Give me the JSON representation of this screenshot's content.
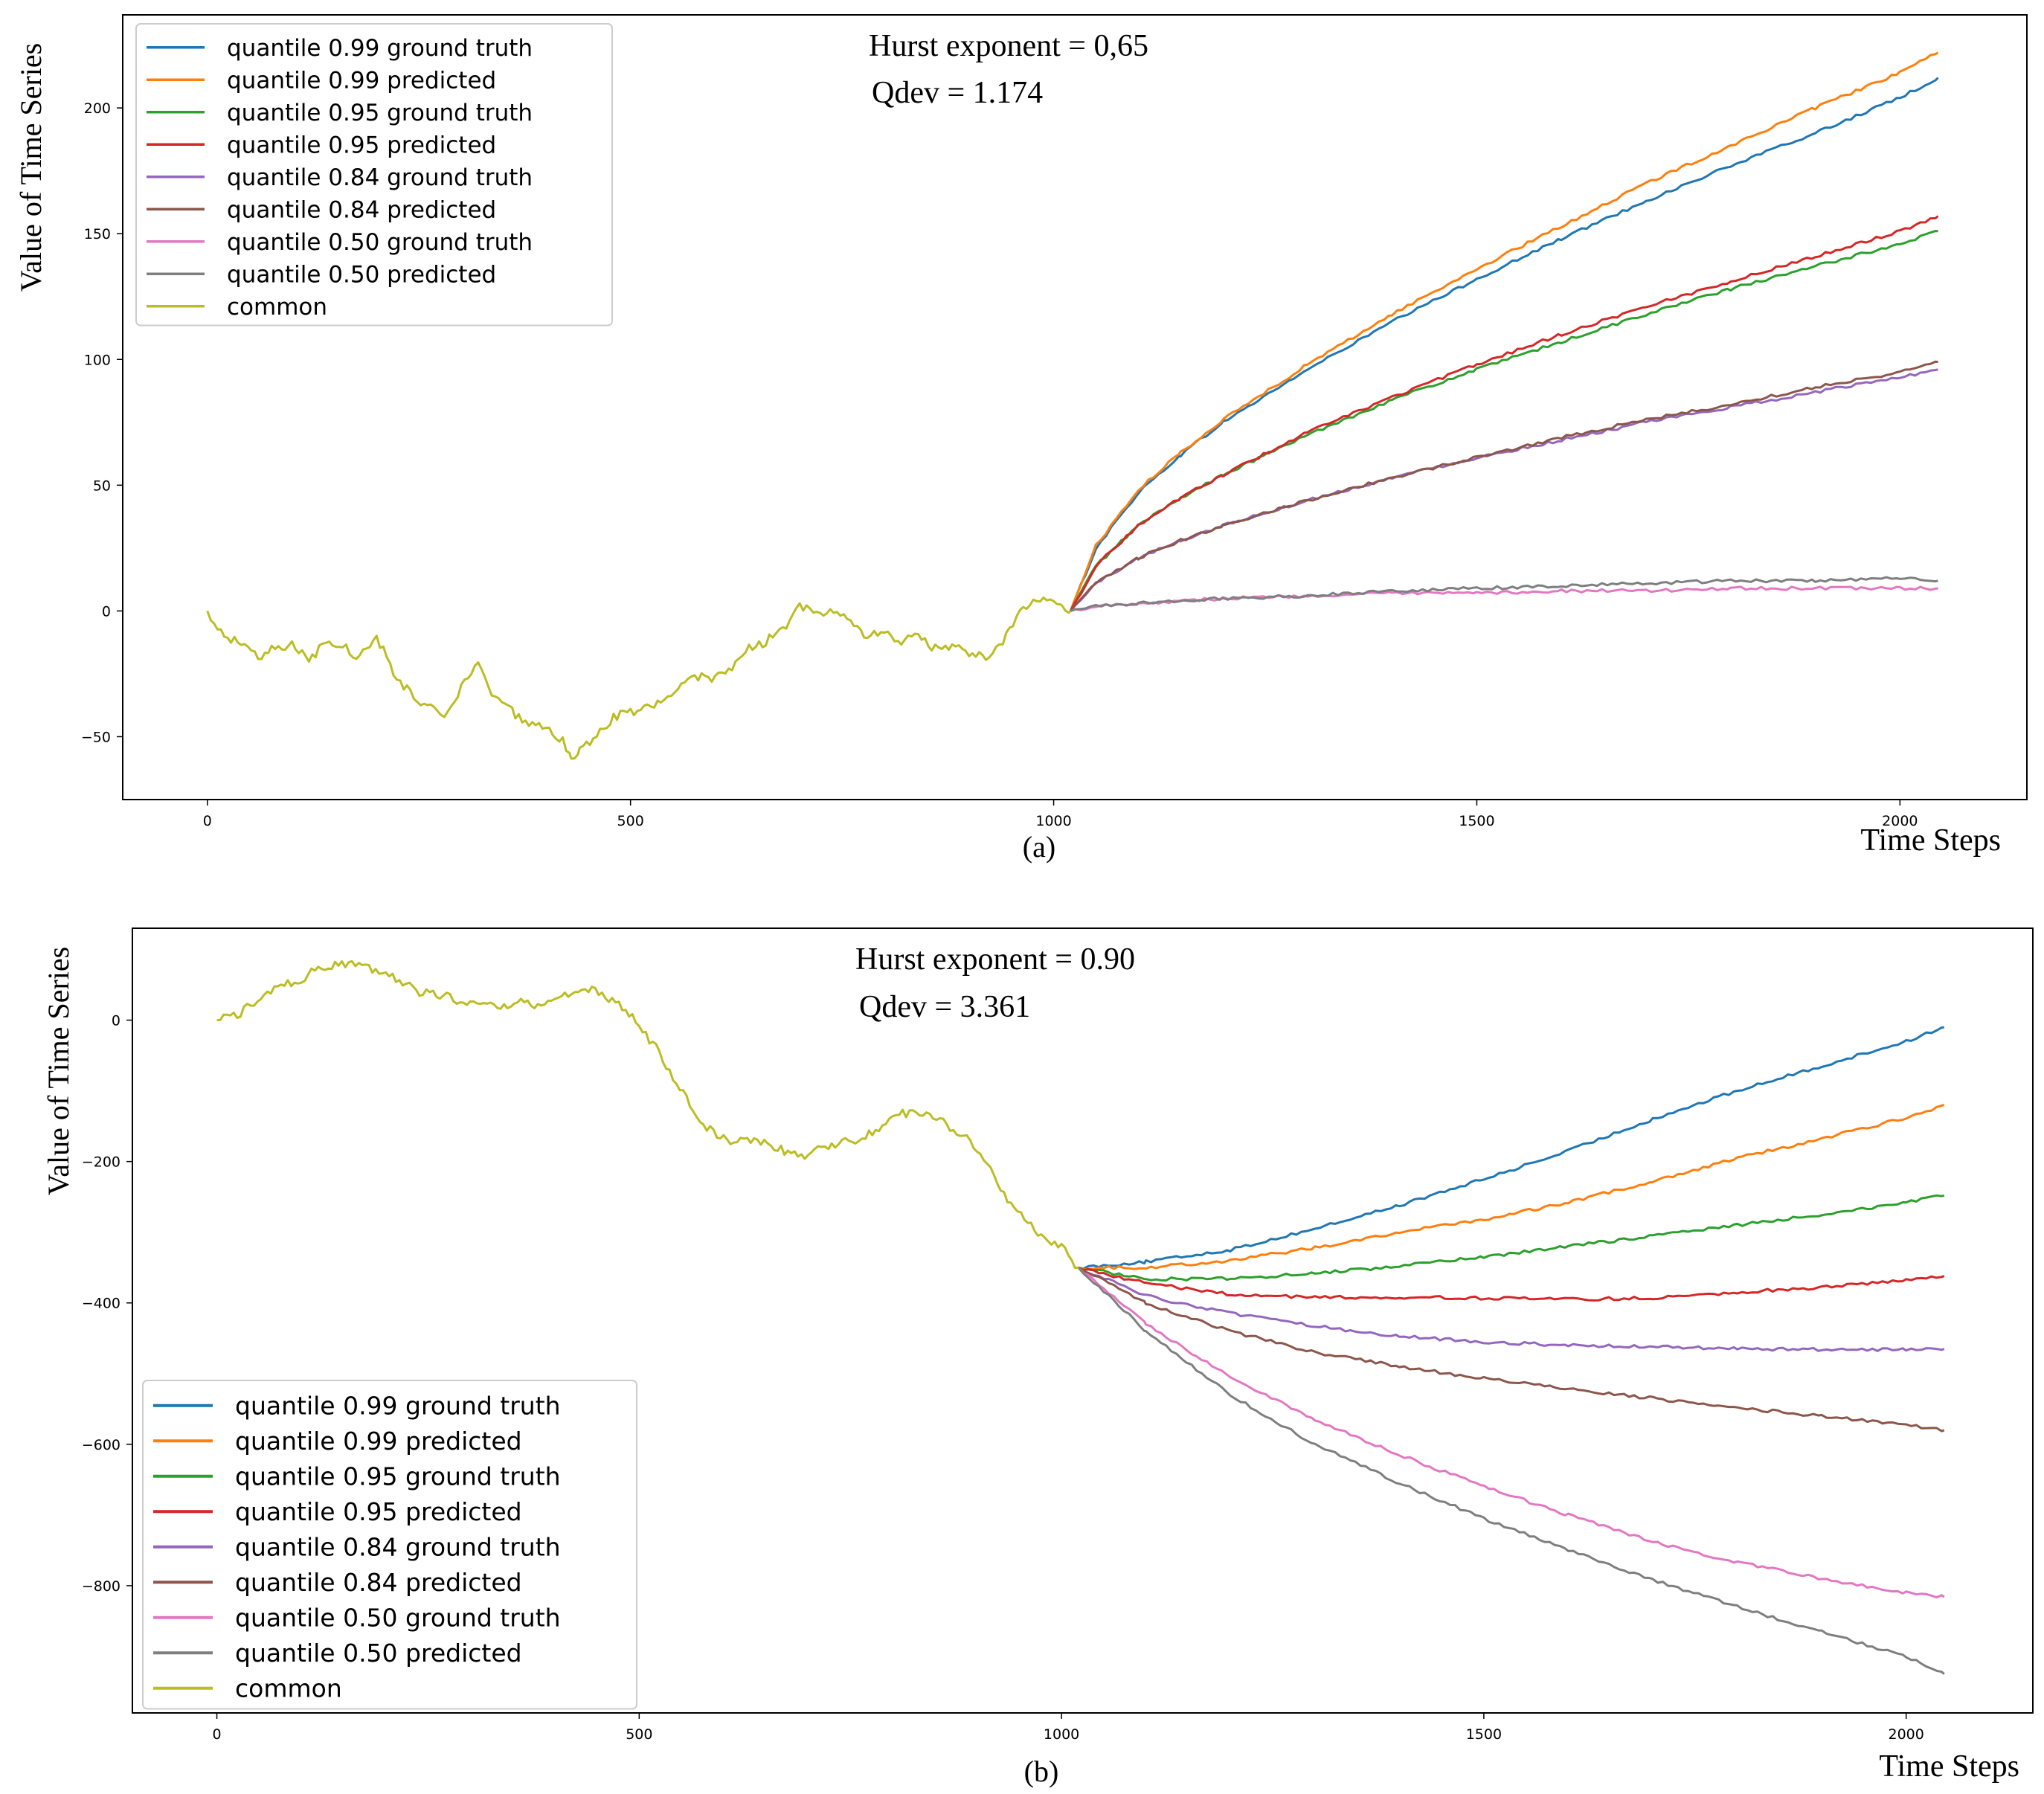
{
  "chart_data": [
    {
      "type": "line",
      "panel_label": "(a)",
      "xlabel": "Time Steps",
      "ylabel": "Value of Time Series",
      "annotations": [
        "Hurst exponent = 0,65",
        "Qdev = 1.174"
      ],
      "xlim": [
        -100,
        2150
      ],
      "ylim": [
        -75,
        237
      ],
      "xticks": [
        0,
        500,
        1000,
        1500,
        2000
      ],
      "xtick_labels": [
        "0",
        "500",
        "1000",
        "1500",
        "2000"
      ],
      "yticks": [
        -50,
        0,
        50,
        100,
        150,
        200
      ],
      "ytick_labels": [
        "−50",
        "0",
        "50",
        "100",
        "150",
        "200"
      ],
      "legend_position": "upper-left",
      "common": {
        "name": "common",
        "color": "#bcbd22",
        "x": [
          0,
          20,
          40,
          60,
          80,
          100,
          120,
          140,
          160,
          180,
          200,
          220,
          240,
          260,
          280,
          300,
          320,
          340,
          360,
          380,
          400,
          420,
          430,
          440,
          460,
          480,
          500,
          520,
          540,
          560,
          580,
          600,
          620,
          640,
          660,
          680,
          700,
          720,
          740,
          760,
          780,
          800,
          820,
          840,
          860,
          880,
          900,
          920,
          940,
          960,
          980,
          1000,
          1010,
          1020
        ],
        "y": [
          0,
          -10,
          -12,
          -18,
          -15,
          -13,
          -20,
          -12,
          -14,
          -19,
          -10,
          -25,
          -33,
          -38,
          -42,
          -30,
          -22,
          -35,
          -40,
          -45,
          -47,
          -52,
          -59,
          -55,
          -50,
          -42,
          -40,
          -38,
          -35,
          -30,
          -26,
          -27,
          -22,
          -15,
          -12,
          -8,
          3,
          -2,
          1,
          -5,
          -10,
          -8,
          -12,
          -10,
          -15,
          -14,
          -17,
          -18,
          -12,
          0,
          5,
          3,
          1,
          0
        ]
      },
      "series": [
        {
          "name": "quantile 0.99 ground truth",
          "color": "#1f77b4",
          "x": [
            1020,
            1050,
            1100,
            1150,
            1200,
            1300,
            1400,
            1500,
            1600,
            1700,
            1800,
            1900,
            2000,
            2045
          ],
          "y": [
            0,
            25,
            47,
            62,
            75,
            96,
            115,
            132,
            148,
            163,
            177,
            190,
            204,
            212
          ]
        },
        {
          "name": "quantile 0.99 predicted",
          "color": "#ff7f0e",
          "x": [
            1020,
            1050,
            1100,
            1150,
            1200,
            1300,
            1400,
            1500,
            1600,
            1700,
            1800,
            1900,
            2000,
            2045
          ],
          "y": [
            0,
            26,
            48,
            63,
            76,
            98,
            118,
            136,
            153,
            170,
            185,
            200,
            214,
            222
          ]
        },
        {
          "name": "quantile 0.95 ground truth",
          "color": "#2ca02c",
          "x": [
            1020,
            1050,
            1100,
            1150,
            1200,
            1300,
            1400,
            1500,
            1600,
            1700,
            1800,
            1900,
            2000,
            2045
          ],
          "y": [
            0,
            18,
            34,
            45,
            54,
            70,
            84,
            96,
            107,
            118,
            128,
            137,
            146,
            151
          ]
        },
        {
          "name": "quantile 0.95 predicted",
          "color": "#d62728",
          "x": [
            1020,
            1050,
            1100,
            1150,
            1200,
            1300,
            1400,
            1500,
            1600,
            1700,
            1800,
            1900,
            2000,
            2045
          ],
          "y": [
            0,
            18,
            34,
            45,
            54,
            71,
            85,
            98,
            110,
            121,
            131,
            141,
            151,
            157
          ]
        },
        {
          "name": "quantile 0.84 ground truth",
          "color": "#9467bd",
          "x": [
            1020,
            1050,
            1100,
            1150,
            1200,
            1300,
            1400,
            1500,
            1600,
            1700,
            1800,
            1900,
            2000,
            2045
          ],
          "y": [
            0,
            11,
            21,
            28,
            34,
            44,
            53,
            61,
            68,
            75,
            81,
            87,
            93,
            96
          ]
        },
        {
          "name": "quantile 0.84 predicted",
          "color": "#8c564b",
          "x": [
            1020,
            1050,
            1100,
            1150,
            1200,
            1300,
            1400,
            1500,
            1600,
            1700,
            1800,
            1900,
            2000,
            2045
          ],
          "y": [
            0,
            11,
            21,
            28,
            34,
            44,
            53,
            61,
            69,
            76,
            82,
            89,
            95,
            99
          ]
        },
        {
          "name": "quantile 0.50 ground truth",
          "color": "#e377c2",
          "x": [
            1020,
            1050,
            1100,
            1200,
            1300,
            1400,
            1500,
            1600,
            1700,
            1800,
            1900,
            2000,
            2045
          ],
          "y": [
            0,
            2,
            3,
            5,
            6,
            7,
            7,
            8,
            8,
            9,
            9,
            9,
            9
          ]
        },
        {
          "name": "quantile 0.50 predicted",
          "color": "#7f7f7f",
          "x": [
            1020,
            1050,
            1100,
            1200,
            1300,
            1400,
            1500,
            1600,
            1700,
            1800,
            1900,
            2000,
            2045
          ],
          "y": [
            0,
            2,
            3,
            5,
            6,
            8,
            9,
            10,
            11,
            12,
            12,
            13,
            12
          ]
        }
      ]
    },
    {
      "type": "line",
      "panel_label": "(b)",
      "xlabel": "Time Steps",
      "ylabel": "Value of Time Series",
      "annotations": [
        "Hurst exponent = 0.90",
        "Qdev = 3.361"
      ],
      "xlim": [
        -100,
        2150
      ],
      "ylim": [
        -980,
        130
      ],
      "xticks": [
        0,
        500,
        1000,
        1500,
        2000
      ],
      "xtick_labels": [
        "0",
        "500",
        "1000",
        "1500",
        "2000"
      ],
      "yticks": [
        -800,
        -600,
        -400,
        -200,
        0
      ],
      "ytick_labels": [
        "−800",
        "−600",
        "−400",
        "−200",
        "0"
      ],
      "legend_position": "lower-left",
      "common": {
        "name": "common",
        "color": "#bcbd22",
        "x": [
          0,
          20,
          40,
          60,
          80,
          100,
          120,
          140,
          160,
          180,
          200,
          220,
          240,
          260,
          280,
          300,
          320,
          340,
          360,
          380,
          400,
          420,
          440,
          460,
          480,
          500,
          520,
          540,
          560,
          580,
          600,
          620,
          640,
          660,
          680,
          700,
          720,
          740,
          760,
          780,
          800,
          820,
          840,
          860,
          880,
          900,
          920,
          940,
          960,
          980,
          1000,
          1020
        ],
        "y": [
          0,
          5,
          20,
          40,
          52,
          58,
          72,
          80,
          78,
          74,
          66,
          55,
          40,
          36,
          30,
          22,
          18,
          22,
          25,
          22,
          30,
          34,
          45,
          35,
          20,
          -10,
          -40,
          -80,
          -120,
          -150,
          -168,
          -172,
          -170,
          -180,
          -188,
          -192,
          -180,
          -172,
          -170,
          -155,
          -138,
          -130,
          -135,
          -145,
          -160,
          -180,
          -220,
          -260,
          -290,
          -305,
          -320,
          -350
        ]
      },
      "series": [
        {
          "name": "quantile 0.99 ground truth",
          "color": "#1f77b4",
          "x": [
            1020,
            1100,
            1200,
            1300,
            1400,
            1500,
            1600,
            1700,
            1800,
            1900,
            2000,
            2045
          ],
          "y": [
            -350,
            -342,
            -325,
            -295,
            -262,
            -225,
            -185,
            -140,
            -100,
            -65,
            -30,
            -10
          ]
        },
        {
          "name": "quantile 0.99 predicted",
          "color": "#ff7f0e",
          "x": [
            1020,
            1100,
            1200,
            1300,
            1400,
            1500,
            1600,
            1700,
            1800,
            1900,
            2000,
            2045
          ],
          "y": [
            -350,
            -350,
            -340,
            -322,
            -300,
            -282,
            -258,
            -228,
            -195,
            -168,
            -138,
            -120
          ]
        },
        {
          "name": "quantile 0.95 ground truth",
          "color": "#2ca02c",
          "x": [
            1020,
            1100,
            1200,
            1300,
            1400,
            1500,
            1600,
            1700,
            1800,
            1900,
            2000,
            2045
          ],
          "y": [
            -350,
            -366,
            -366,
            -358,
            -348,
            -335,
            -320,
            -305,
            -290,
            -275,
            -258,
            -248
          ]
        },
        {
          "name": "quantile 0.95 predicted",
          "color": "#d62728",
          "x": [
            1020,
            1100,
            1200,
            1300,
            1400,
            1500,
            1600,
            1700,
            1800,
            1900,
            2000,
            2045
          ],
          "y": [
            -350,
            -372,
            -388,
            -392,
            -392,
            -393,
            -395,
            -393,
            -385,
            -378,
            -368,
            -362
          ]
        },
        {
          "name": "quantile 0.84 ground truth",
          "color": "#9467bd",
          "x": [
            1020,
            1100,
            1200,
            1300,
            1400,
            1500,
            1600,
            1700,
            1800,
            1900,
            2000,
            2045
          ],
          "y": [
            -350,
            -390,
            -415,
            -433,
            -447,
            -455,
            -460,
            -462,
            -465,
            -466,
            -466,
            -465
          ]
        },
        {
          "name": "quantile 0.84 predicted",
          "color": "#8c564b",
          "x": [
            1020,
            1100,
            1200,
            1300,
            1400,
            1500,
            1600,
            1700,
            1800,
            1900,
            2000,
            2045
          ],
          "y": [
            -350,
            -400,
            -440,
            -470,
            -490,
            -507,
            -522,
            -535,
            -548,
            -560,
            -572,
            -580
          ]
        },
        {
          "name": "quantile 0.50 ground truth",
          "color": "#e377c2",
          "x": [
            1020,
            1100,
            1200,
            1300,
            1400,
            1500,
            1600,
            1700,
            1800,
            1900,
            2000,
            2045
          ],
          "y": [
            -350,
            -430,
            -505,
            -565,
            -615,
            -660,
            -700,
            -738,
            -767,
            -790,
            -810,
            -816
          ]
        },
        {
          "name": "quantile 0.50 predicted",
          "color": "#7f7f7f",
          "x": [
            1020,
            1100,
            1200,
            1300,
            1400,
            1500,
            1600,
            1700,
            1800,
            1900,
            2000,
            2045
          ],
          "y": [
            -350,
            -440,
            -530,
            -600,
            -655,
            -705,
            -750,
            -792,
            -830,
            -865,
            -900,
            -925
          ]
        }
      ]
    }
  ],
  "legend_order": [
    "quantile 0.99 ground truth",
    "quantile 0.99 predicted",
    "quantile 0.95 ground truth",
    "quantile 0.95 predicted",
    "quantile 0.84 ground truth",
    "quantile 0.84 predicted",
    "quantile 0.50 ground truth",
    "quantile 0.50 predicted",
    "common"
  ]
}
